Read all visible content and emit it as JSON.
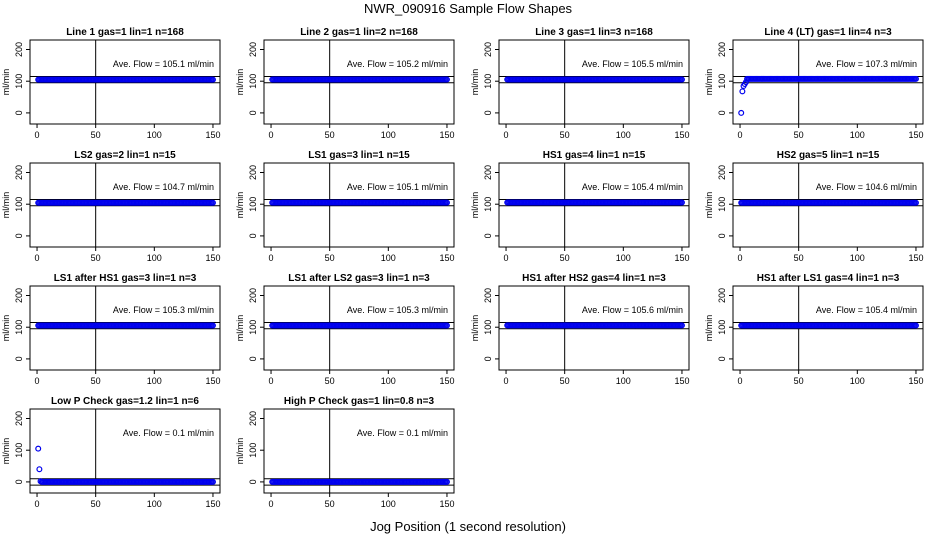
{
  "figure": {
    "title": "NWR_090916  Sample Flow Shapes",
    "xlabel": "Jog Position (1 second resolution)"
  },
  "chart_data": [
    {
      "type": "scatter",
      "title": "Line 1 gas=1 lin=1 n=168",
      "ylabel": "ml/min",
      "annotation": "Ave. Flow =  105.1  ml/min",
      "xlim": [
        0,
        150
      ],
      "ylim": [
        0,
        200
      ],
      "xticks": [
        0,
        50,
        100,
        150
      ],
      "yticks": [
        0,
        100,
        200
      ],
      "vline": 50,
      "hlines": [
        95,
        115
      ],
      "series": [
        {
          "x": [
            1,
            150
          ],
          "y": [
            105.1,
            105.1
          ],
          "shape": "flat"
        }
      ]
    },
    {
      "type": "scatter",
      "title": "Line 2 gas=1 lin=2 n=168",
      "ylabel": "ml/min",
      "annotation": "Ave. Flow =  105.2  ml/min",
      "xlim": [
        0,
        150
      ],
      "ylim": [
        0,
        200
      ],
      "xticks": [
        0,
        50,
        100,
        150
      ],
      "yticks": [
        0,
        100,
        200
      ],
      "vline": 50,
      "hlines": [
        95,
        115
      ],
      "series": [
        {
          "x": [
            1,
            150
          ],
          "y": [
            105.2,
            105.2
          ],
          "shape": "flat"
        }
      ]
    },
    {
      "type": "scatter",
      "title": "Line 3 gas=1 lin=3 n=168",
      "ylabel": "ml/min",
      "annotation": "Ave. Flow =  105.5  ml/min",
      "xlim": [
        0,
        150
      ],
      "ylim": [
        0,
        200
      ],
      "xticks": [
        0,
        50,
        100,
        150
      ],
      "yticks": [
        0,
        100,
        200
      ],
      "vline": 50,
      "hlines": [
        95,
        115
      ],
      "series": [
        {
          "x": [
            1,
            150
          ],
          "y": [
            105.5,
            105.5
          ],
          "shape": "flat"
        }
      ]
    },
    {
      "type": "scatter",
      "title": "Line 4 (LT) gas=1 lin=4 n=3",
      "ylabel": "ml/min",
      "annotation": "Ave. Flow =  107.3  ml/min",
      "xlim": [
        0,
        150
      ],
      "ylim": [
        0,
        200
      ],
      "xticks": [
        0,
        50,
        100,
        150
      ],
      "yticks": [
        0,
        100,
        200
      ],
      "vline": 50,
      "hlines": [
        95,
        115
      ],
      "series": [
        {
          "x": [
            1,
            2,
            3,
            5,
            150
          ],
          "y": [
            0,
            68,
            85,
            97,
            107.3
          ],
          "shape": "rise"
        }
      ]
    },
    {
      "type": "scatter",
      "title": "LS2 gas=2 lin=1 n=15",
      "ylabel": "ml/min",
      "annotation": "Ave. Flow =  104.7  ml/min",
      "xlim": [
        0,
        150
      ],
      "ylim": [
        0,
        200
      ],
      "xticks": [
        0,
        50,
        100,
        150
      ],
      "yticks": [
        0,
        100,
        200
      ],
      "vline": 50,
      "hlines": [
        95,
        115
      ],
      "series": [
        {
          "x": [
            1,
            150
          ],
          "y": [
            104.7,
            104.7
          ],
          "shape": "flat"
        }
      ]
    },
    {
      "type": "scatter",
      "title": "LS1 gas=3 lin=1 n=15",
      "ylabel": "ml/min",
      "annotation": "Ave. Flow =  105.1  ml/min",
      "xlim": [
        0,
        150
      ],
      "ylim": [
        0,
        200
      ],
      "xticks": [
        0,
        50,
        100,
        150
      ],
      "yticks": [
        0,
        100,
        200
      ],
      "vline": 50,
      "hlines": [
        95,
        115
      ],
      "series": [
        {
          "x": [
            1,
            150
          ],
          "y": [
            105.1,
            105.1
          ],
          "shape": "flat"
        }
      ]
    },
    {
      "type": "scatter",
      "title": "HS1 gas=4 lin=1 n=15",
      "ylabel": "ml/min",
      "annotation": "Ave. Flow =  105.4  ml/min",
      "xlim": [
        0,
        150
      ],
      "ylim": [
        0,
        200
      ],
      "xticks": [
        0,
        50,
        100,
        150
      ],
      "yticks": [
        0,
        100,
        200
      ],
      "vline": 50,
      "hlines": [
        95,
        115
      ],
      "series": [
        {
          "x": [
            1,
            150
          ],
          "y": [
            105.4,
            105.4
          ],
          "shape": "flat"
        }
      ]
    },
    {
      "type": "scatter",
      "title": "HS2 gas=5 lin=1 n=15",
      "ylabel": "ml/min",
      "annotation": "Ave. Flow =  104.6  ml/min",
      "xlim": [
        0,
        150
      ],
      "ylim": [
        0,
        200
      ],
      "xticks": [
        0,
        50,
        100,
        150
      ],
      "yticks": [
        0,
        100,
        200
      ],
      "vline": 50,
      "hlines": [
        95,
        115
      ],
      "series": [
        {
          "x": [
            1,
            150
          ],
          "y": [
            104.6,
            104.6
          ],
          "shape": "flat"
        }
      ]
    },
    {
      "type": "scatter",
      "title": "LS1 after HS1 gas=3 lin=1 n=3",
      "ylabel": "ml/min",
      "annotation": "Ave. Flow =  105.3  ml/min",
      "xlim": [
        0,
        150
      ],
      "ylim": [
        0,
        200
      ],
      "xticks": [
        0,
        50,
        100,
        150
      ],
      "yticks": [
        0,
        100,
        200
      ],
      "vline": 50,
      "hlines": [
        95,
        115
      ],
      "series": [
        {
          "x": [
            1,
            150
          ],
          "y": [
            105.3,
            105.3
          ],
          "shape": "flat"
        }
      ]
    },
    {
      "type": "scatter",
      "title": "LS1 after LS2 gas=3 lin=1 n=3",
      "ylabel": "ml/min",
      "annotation": "Ave. Flow =  105.3  ml/min",
      "xlim": [
        0,
        150
      ],
      "ylim": [
        0,
        200
      ],
      "xticks": [
        0,
        50,
        100,
        150
      ],
      "yticks": [
        0,
        100,
        200
      ],
      "vline": 50,
      "hlines": [
        95,
        115
      ],
      "series": [
        {
          "x": [
            1,
            150
          ],
          "y": [
            105.3,
            105.3
          ],
          "shape": "flat"
        }
      ]
    },
    {
      "type": "scatter",
      "title": "HS1 after HS2 gas=4 lin=1 n=3",
      "ylabel": "ml/min",
      "annotation": "Ave. Flow =  105.6  ml/min",
      "xlim": [
        0,
        150
      ],
      "ylim": [
        0,
        200
      ],
      "xticks": [
        0,
        50,
        100,
        150
      ],
      "yticks": [
        0,
        100,
        200
      ],
      "vline": 50,
      "hlines": [
        95,
        115
      ],
      "series": [
        {
          "x": [
            1,
            150
          ],
          "y": [
            105.6,
            105.6
          ],
          "shape": "flat"
        }
      ]
    },
    {
      "type": "scatter",
      "title": "HS1 after LS1 gas=4 lin=1 n=3",
      "ylabel": "ml/min",
      "annotation": "Ave. Flow =  105.4  ml/min",
      "xlim": [
        0,
        150
      ],
      "ylim": [
        0,
        200
      ],
      "xticks": [
        0,
        50,
        100,
        150
      ],
      "yticks": [
        0,
        100,
        200
      ],
      "vline": 50,
      "hlines": [
        95,
        115
      ],
      "series": [
        {
          "x": [
            1,
            150
          ],
          "y": [
            105.4,
            105.4
          ],
          "shape": "flat"
        }
      ]
    },
    {
      "type": "scatter",
      "title": "Low P Check gas=1.2 lin=1 n=6",
      "ylabel": "ml/min",
      "annotation": "Ave. Flow =  0.1  ml/min",
      "xlim": [
        0,
        150
      ],
      "ylim": [
        0,
        200
      ],
      "xticks": [
        0,
        50,
        100,
        150
      ],
      "yticks": [
        0,
        100,
        200
      ],
      "vline": 50,
      "hlines": [
        -10,
        10
      ],
      "series": [
        {
          "x": [
            1,
            2,
            3,
            150
          ],
          "y": [
            105,
            40,
            2,
            0.1
          ],
          "shape": "drop"
        }
      ]
    },
    {
      "type": "scatter",
      "title": "High P Check gas=1 lin=0.8 n=3",
      "ylabel": "ml/min",
      "annotation": "Ave. Flow =  0.1  ml/min",
      "xlim": [
        0,
        150
      ],
      "ylim": [
        0,
        200
      ],
      "xticks": [
        0,
        50,
        100,
        150
      ],
      "yticks": [
        0,
        100,
        200
      ],
      "vline": 50,
      "hlines": [
        -10,
        10
      ],
      "series": [
        {
          "x": [
            1,
            150
          ],
          "y": [
            0.1,
            0.1
          ],
          "shape": "flat"
        }
      ]
    }
  ],
  "colors": {
    "points": "#0000ee",
    "axes": "#000000"
  }
}
